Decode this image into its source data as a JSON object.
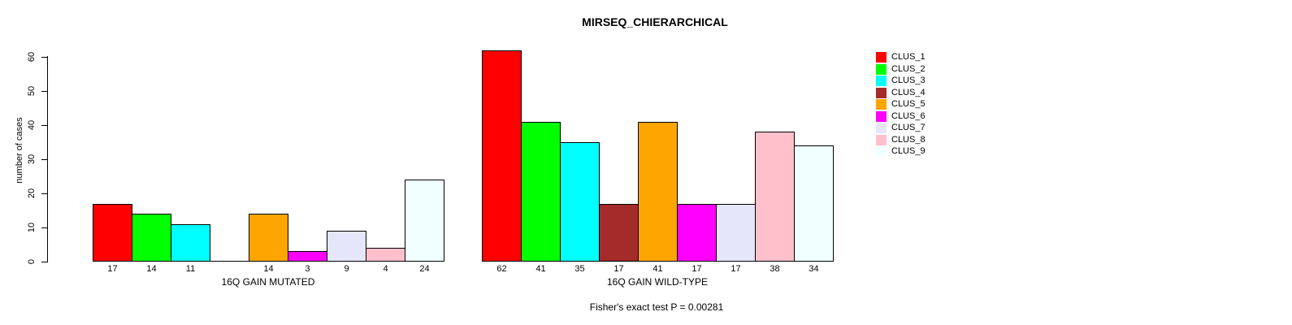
{
  "title": "MIRSEQ_CHIERARCHICAL",
  "subtitle": "Fisher's exact test P = 0.00281",
  "chart_data": {
    "type": "bar",
    "title": "MIRSEQ_CHIERARCHICAL",
    "ylabel": "number of cases",
    "xlabel": "",
    "ylim": [
      0,
      60
    ],
    "yticks": [
      0,
      10,
      20,
      30,
      40,
      50,
      60
    ],
    "grid": false,
    "legend_position": "right",
    "categories": [
      "CLUS_1",
      "CLUS_2",
      "CLUS_3",
      "CLUS_4",
      "CLUS_5",
      "CLUS_6",
      "CLUS_7",
      "CLUS_8",
      "CLUS_9"
    ],
    "colors": [
      "#FF0000",
      "#00FF00",
      "#00FFFF",
      "#A52A2A",
      "#FFA500",
      "#FF00FF",
      "#E6E6FA",
      "#FFC0CB",
      "#F0FFFF"
    ],
    "groups": [
      {
        "label": "16Q GAIN MUTATED",
        "values": [
          17,
          14,
          11,
          0,
          14,
          3,
          9,
          4,
          24
        ],
        "value_labels": [
          "17",
          "14",
          "11",
          "",
          "14",
          "3",
          "9",
          "4",
          "24"
        ]
      },
      {
        "label": "16Q GAIN WILD-TYPE",
        "values": [
          62,
          41,
          35,
          17,
          41,
          17,
          17,
          38,
          34
        ],
        "value_labels": [
          "62",
          "41",
          "35",
          "17",
          "41",
          "17",
          "17",
          "38",
          "34"
        ]
      }
    ],
    "annotation": "Fisher's exact test P = 0.00281"
  }
}
